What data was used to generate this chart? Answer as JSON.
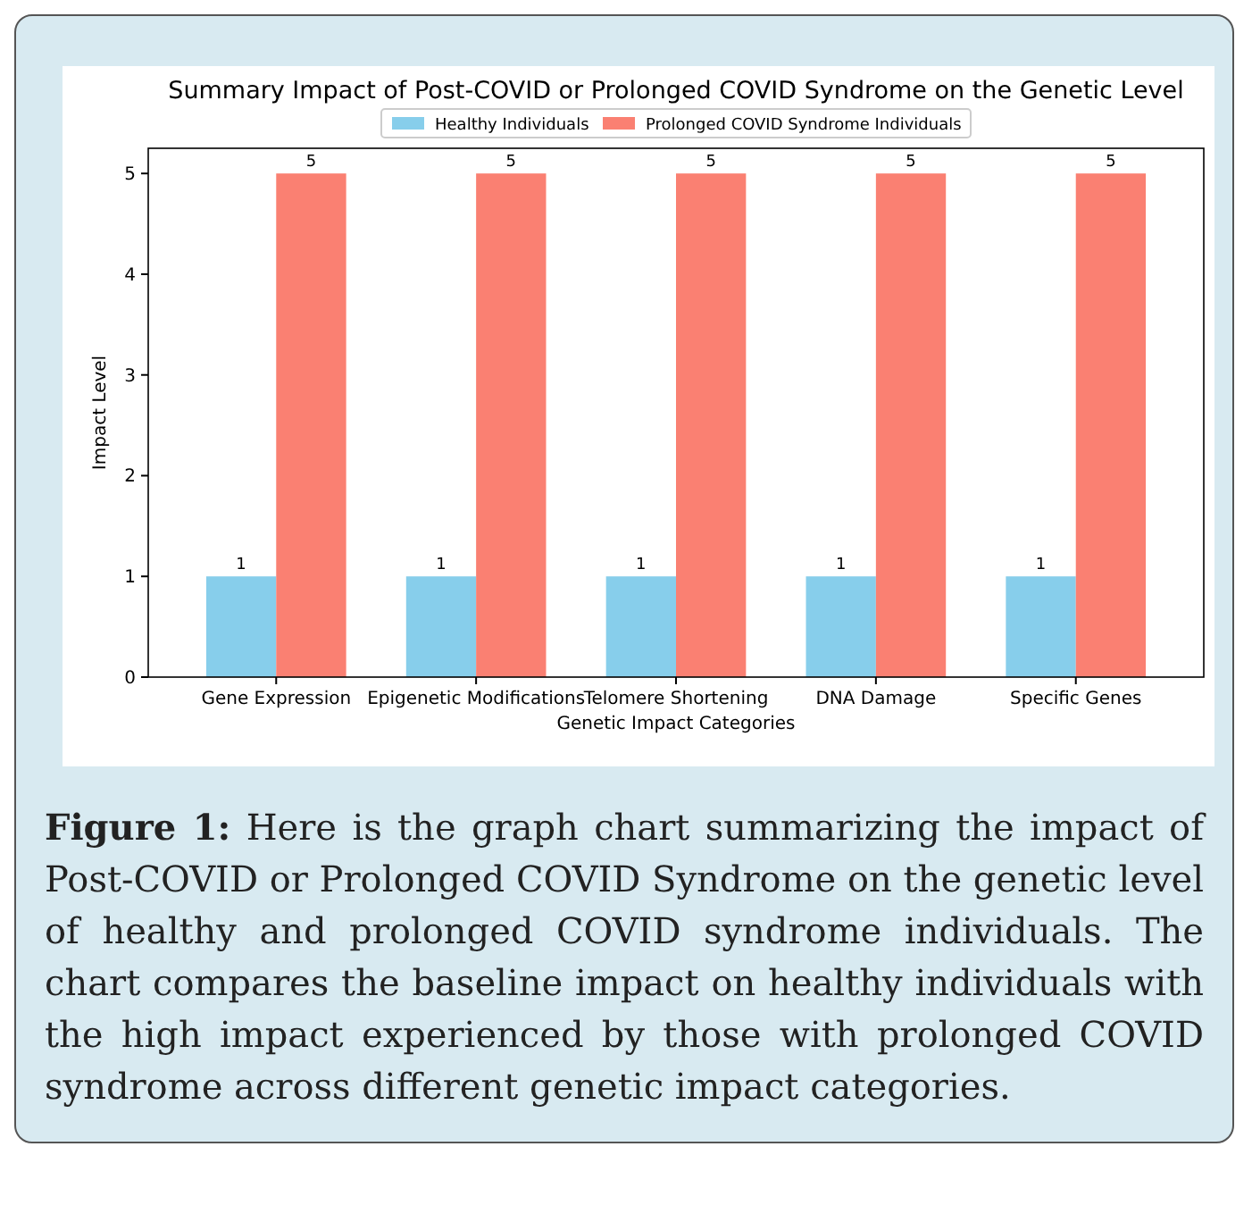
{
  "chart_data": {
    "type": "bar",
    "title": "Summary Impact of Post-COVID or Prolonged COVID Syndrome on the Genetic Level",
    "xlabel": "Genetic Impact Categories",
    "ylabel": "Impact Level",
    "categories": [
      "Gene Expression",
      "Epigenetic Modifications",
      "Telomere Shortening",
      "DNA Damage",
      "Specific Genes"
    ],
    "series": [
      {
        "name": "Healthy Individuals",
        "color": "#87ceeb",
        "values": [
          1,
          1,
          1,
          1,
          1
        ]
      },
      {
        "name": "Prolonged COVID Syndrome Individuals",
        "color": "#fa8072",
        "values": [
          5,
          5,
          5,
          5,
          5
        ]
      }
    ],
    "ylim": [
      0,
      5.25
    ],
    "yticks": [
      0,
      1,
      2,
      3,
      4,
      5
    ],
    "data_labels": true,
    "legend": "top",
    "grid": false,
    "annotations": [
      "Figure 1: Here is the graph chart summarizing the impact of Post-COVID or Prolonged COVID Syndrome on the genetic level of healthy and prolonged COVID syndrome individuals. The chart compares the baseline impact on healthy individuals with the high impact experienced by those with prolonged COVID syndrome across different genetic impact categories."
    ]
  }
}
